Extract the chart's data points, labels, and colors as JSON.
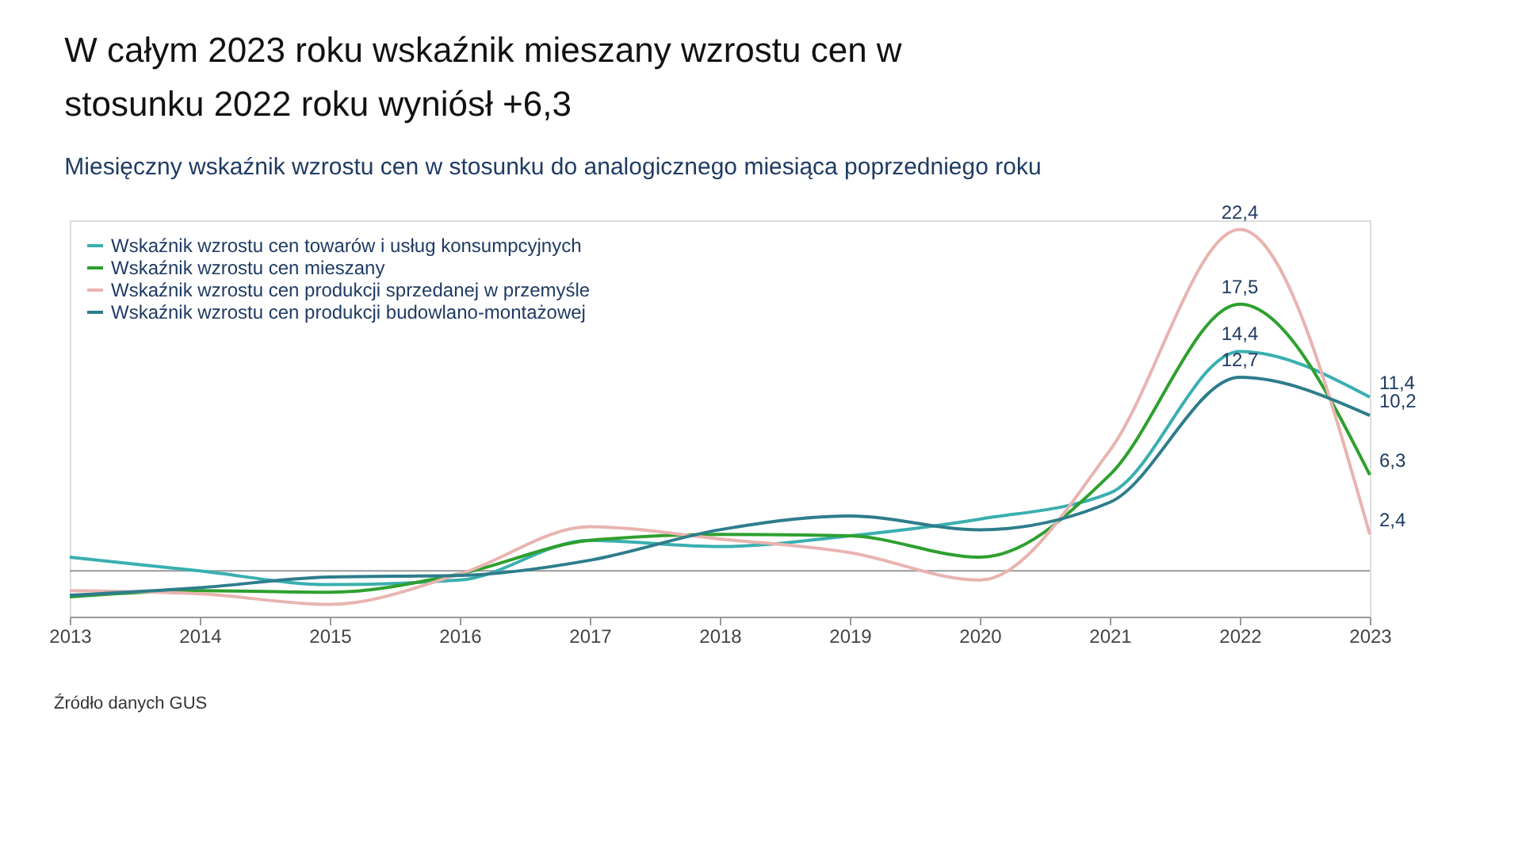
{
  "chart_data": {
    "type": "line",
    "title": "W całym 2023 roku wskaźnik mieszany wzrostu cen w stosunku 2022 roku wyniósł +6,3",
    "subtitle": "Miesięczny wskaźnik wzrostu cen w stosunku do analogicznego miesiąca poprzedniego roku",
    "x": [
      2013,
      2014,
      2015,
      2016,
      2017,
      2018,
      2019,
      2020,
      2021,
      2022,
      2023
    ],
    "xlim": [
      2013,
      2023
    ],
    "xticks": [
      2013,
      2014,
      2015,
      2016,
      2017,
      2018,
      2019,
      2020,
      2021,
      2022,
      2023
    ],
    "ylim": [
      -3,
      23
    ],
    "grid": false,
    "legend": "top left",
    "marker": "none",
    "line_style": "solid",
    "annotations": [
      "Źródło danych GUS"
    ],
    "series": [
      {
        "name": "Wskaźnik wzrostu cen towarów i usług konsumpcyjnych",
        "color": "#3aafb0",
        "values": [
          0.9,
          0.0,
          -0.9,
          -0.6,
          2.0,
          1.6,
          2.3,
          3.4,
          5.1,
          14.4,
          11.4
        ],
        "value_labels": [
          null,
          null,
          null,
          null,
          null,
          null,
          null,
          null,
          null,
          "14,4",
          "11,4"
        ]
      },
      {
        "name": "Wskaźnik wzrostu cen mieszany",
        "color": "#2ea02e",
        "values": [
          -1.7,
          -1.3,
          -1.4,
          -0.2,
          2.0,
          2.4,
          2.3,
          0.9,
          6.3,
          17.5,
          6.3
        ],
        "value_labels": [
          null,
          null,
          null,
          null,
          null,
          null,
          null,
          null,
          null,
          "17,5",
          "6,3"
        ]
      },
      {
        "name": "Wskaźnik wzrostu cen produkcji sprzedanej w przemyśle",
        "color": "#e8b4b0",
        "values": [
          -1.3,
          -1.5,
          -2.2,
          -0.2,
          2.9,
          2.1,
          1.2,
          -0.6,
          7.9,
          22.4,
          2.4
        ],
        "value_labels": [
          null,
          null,
          null,
          null,
          null,
          null,
          null,
          null,
          null,
          "22,4",
          "2,4"
        ]
      },
      {
        "name": "Wskaźnik wzrostu cen produkcji budowlano-montażowej",
        "color": "#2e7d8c",
        "values": [
          -1.6,
          -1.1,
          -0.4,
          -0.3,
          0.7,
          2.7,
          3.6,
          2.7,
          4.5,
          12.7,
          10.2
        ],
        "value_labels": [
          null,
          null,
          null,
          null,
          null,
          null,
          null,
          null,
          null,
          "12,7",
          "10,2"
        ]
      }
    ]
  }
}
